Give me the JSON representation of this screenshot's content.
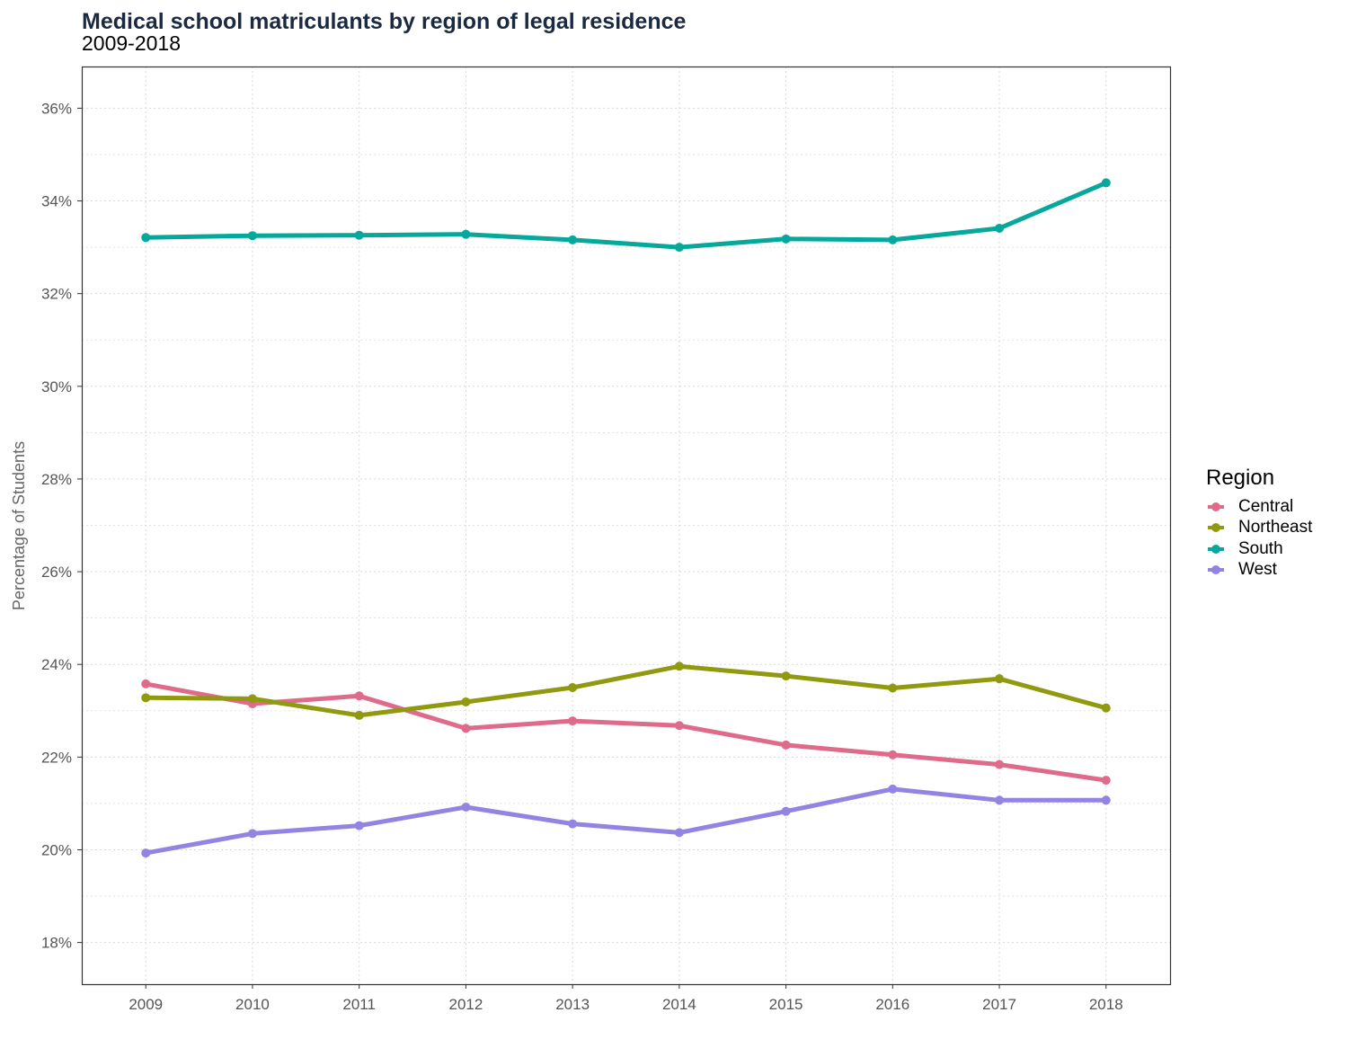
{
  "title": "Medical school matriculants by region of legal residence",
  "subtitle": "2009-2018",
  "chart_data": {
    "type": "line",
    "title": "Medical school matriculants by region of legal residence",
    "subtitle": "2009-2018",
    "xlabel": "",
    "ylabel": "Percentage of Students",
    "x": [
      2009,
      2010,
      2011,
      2012,
      2013,
      2014,
      2015,
      2016,
      2017,
      2018
    ],
    "x_tick_labels": [
      "2009",
      "2010",
      "2011",
      "2012",
      "2013",
      "2014",
      "2015",
      "2016",
      "2017",
      "2018"
    ],
    "ylim": [
      17.1,
      36.9
    ],
    "y_ticks": [
      18,
      20,
      22,
      24,
      26,
      28,
      30,
      32,
      34,
      36
    ],
    "y_tick_labels": [
      "18%",
      "20%",
      "22%",
      "24%",
      "26%",
      "28%",
      "30%",
      "32%",
      "34%",
      "36%"
    ],
    "grid": true,
    "legend_title": "Region",
    "legend_position": "right",
    "series": [
      {
        "name": "Central",
        "color": "#df6b8a",
        "values": [
          23.58,
          23.15,
          23.32,
          22.62,
          22.78,
          22.68,
          22.26,
          22.05,
          21.84,
          21.5
        ]
      },
      {
        "name": "Northeast",
        "color": "#8f9a10",
        "values": [
          23.28,
          23.26,
          22.9,
          23.19,
          23.5,
          23.96,
          23.75,
          23.49,
          23.69,
          23.06
        ]
      },
      {
        "name": "South",
        "color": "#05a89a",
        "values": [
          33.21,
          33.25,
          33.26,
          33.28,
          33.16,
          33.0,
          33.18,
          33.16,
          33.41,
          34.39
        ]
      },
      {
        "name": "West",
        "color": "#9384e3",
        "values": [
          19.93,
          20.35,
          20.52,
          20.92,
          20.56,
          20.37,
          20.83,
          21.31,
          21.07,
          21.07
        ]
      }
    ]
  }
}
